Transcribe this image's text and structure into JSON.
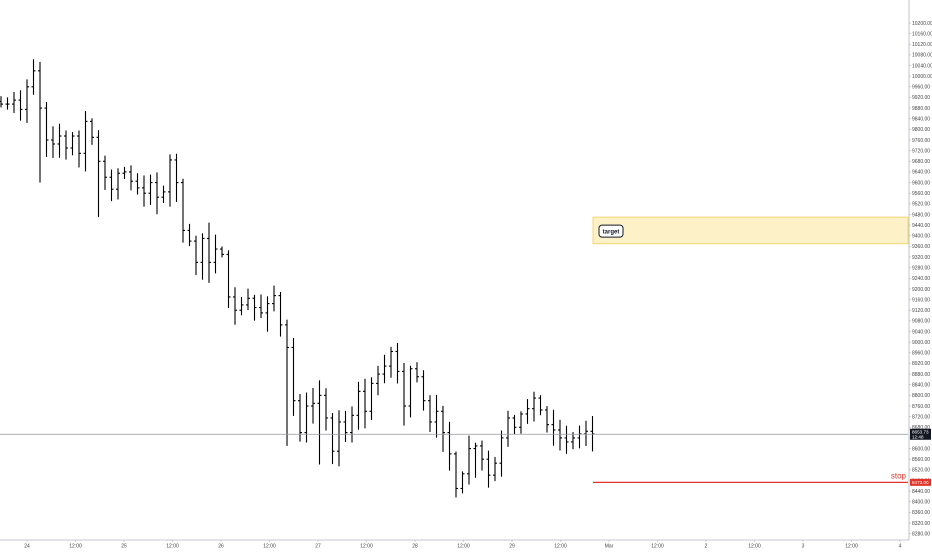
{
  "chart_data": {
    "type": "ohlc",
    "title": "",
    "xlabel": "",
    "ylabel": "",
    "grid": false,
    "ylim": [
      8260,
      10260
    ],
    "y_ticks": [
      "10200.00",
      "10160.00",
      "10120.00",
      "10080.00",
      "10040.00",
      "10000.00",
      "9960.00",
      "9920.00",
      "9880.00",
      "9840.00",
      "9800.00",
      "9760.00",
      "9720.00",
      "9680.00",
      "9640.00",
      "9600.00",
      "9560.00",
      "9520.00",
      "9480.00",
      "9440.00",
      "9400.00",
      "9360.00",
      "9320.00",
      "9280.00",
      "9240.00",
      "9200.00",
      "9160.00",
      "9120.00",
      "9080.00",
      "9040.00",
      "9000.00",
      "8960.00",
      "8920.00",
      "8880.00",
      "8840.00",
      "8800.00",
      "8760.00",
      "8720.00",
      "8680.00",
      "8640.00",
      "8600.00",
      "8560.00",
      "8520.00",
      "8480.00",
      "8440.00",
      "8400.00",
      "8360.00",
      "8320.00",
      "8280.00"
    ],
    "x_ticks": [
      "24",
      "12:00",
      "25",
      "12:00",
      "26",
      "12:00",
      "27",
      "12:00",
      "28",
      "12:00",
      "29",
      "12:00",
      "Mar",
      "12:00",
      "2",
      "12:00",
      "3",
      "12:00",
      "4"
    ],
    "last_price": {
      "value": 8653.73,
      "label": "8653.73",
      "countdown": "12:48",
      "color": "#131722"
    },
    "stop": {
      "value": 8473,
      "label": "8473.00",
      "text": "stop",
      "color": "#e0342b"
    },
    "target_zone": {
      "low": 9370,
      "high": 9470,
      "text": "target",
      "color": "#f7d774"
    },
    "bar_color": "#000000",
    "close_path": [
      9895,
      9895,
      9910,
      9875,
      9960,
      10020,
      9880,
      9760,
      9745,
      9775,
      9730,
      9775,
      9710,
      9830,
      9770,
      9680,
      9620,
      9575,
      9635,
      9640,
      9605,
      9580,
      9560,
      9600,
      9545,
      9565,
      9685,
      9600,
      9420,
      9380,
      9300,
      9390,
      9300,
      9350,
      9330,
      9170,
      9120,
      9140,
      9165,
      9130,
      9110,
      9145,
      9175,
      9065,
      8980,
      8780,
      8660,
      8760,
      8770,
      8800,
      8715,
      8590,
      8700,
      8660,
      8725,
      8815,
      8740,
      8845,
      8880,
      8910,
      8965,
      8890,
      8760,
      8900,
      8870,
      8780,
      8700,
      8740,
      8660,
      8580,
      8450,
      8505,
      8600,
      8610,
      8560,
      8500,
      8545,
      8640,
      8715,
      8680,
      8730,
      8750,
      8790,
      8745,
      8690,
      8670,
      8640,
      8625,
      8640,
      8655,
      8665,
      8655
    ],
    "seed": 7
  }
}
